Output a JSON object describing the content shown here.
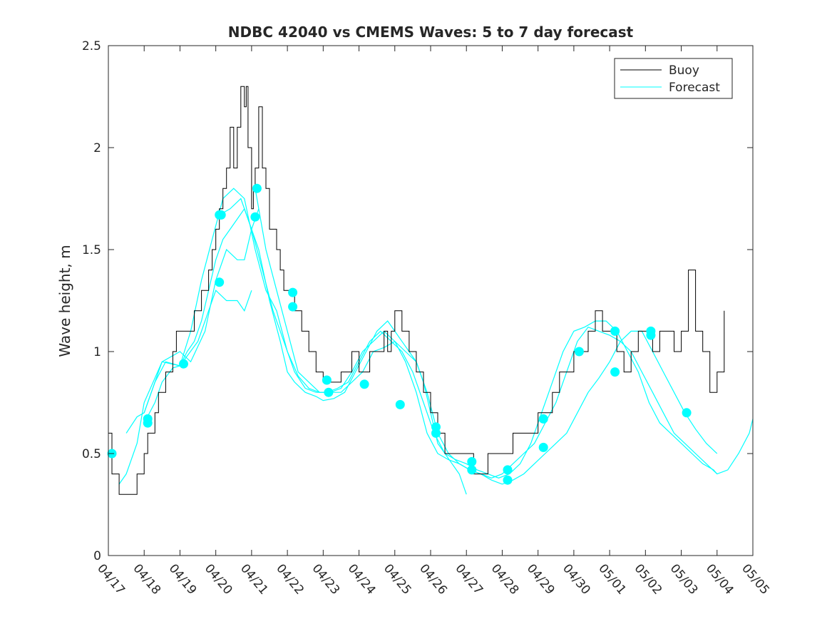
{
  "chart_data": {
    "type": "line",
    "title": "NDBC 42040 vs CMEMS Waves: 5 to 7 day forecast",
    "ylabel": "Wave height, m",
    "xlabel": "",
    "xlim": [
      "04/17",
      "05/05"
    ],
    "ylim": [
      0,
      2.5
    ],
    "xtick_labels": [
      "04/17",
      "04/18",
      "04/19",
      "04/20",
      "04/21",
      "04/22",
      "04/23",
      "04/24",
      "04/25",
      "04/26",
      "04/27",
      "04/28",
      "04/29",
      "04/30",
      "05/01",
      "05/02",
      "05/03",
      "05/04",
      "05/05"
    ],
    "ytick_labels": [
      "0",
      "0.5",
      "1",
      "1.5",
      "2",
      "2.5"
    ],
    "legend": {
      "position": "top-right",
      "entries": [
        {
          "label": "Buoy",
          "color": "#000000"
        },
        {
          "label": "Forecast",
          "color": "#00ffff"
        }
      ]
    },
    "colors": {
      "buoy": "#000000",
      "forecast": "#00ffff",
      "axis": "#262626",
      "markers": "#00ffff"
    },
    "buoy": {
      "day": [
        0,
        0.1,
        0.3,
        0.4,
        0.55,
        0.6,
        0.7,
        0.8,
        1.0,
        1.1,
        1.3,
        1.4,
        1.6,
        1.8,
        1.9,
        2.0,
        2.2,
        2.4,
        2.5,
        2.6,
        2.8,
        2.9,
        3.0,
        3.1,
        3.2,
        3.3,
        3.4,
        3.5,
        3.6,
        3.7,
        3.8,
        3.85,
        3.9,
        4.0,
        4.05,
        4.1,
        4.2,
        4.3,
        4.4,
        4.5,
        4.6,
        4.7,
        4.8,
        4.9,
        5.0,
        5.2,
        5.4,
        5.6,
        5.8,
        6.0,
        6.2,
        6.5,
        6.8,
        7.0,
        7.3,
        7.5,
        7.7,
        7.8,
        7.9,
        8.0,
        8.2,
        8.4,
        8.6,
        8.8,
        9.0,
        9.2,
        9.4,
        9.6,
        9.8,
        10.0,
        10.2,
        10.4,
        10.6,
        10.8,
        11.0,
        11.3,
        11.6,
        11.8,
        11.9,
        12.0,
        12.2,
        12.4,
        12.6,
        12.8,
        13.0,
        13.2,
        13.4,
        13.6,
        13.8,
        14.0,
        14.2,
        14.4,
        14.6,
        14.8,
        15.0,
        15.2,
        15.4,
        15.6,
        15.8,
        16.0,
        16.2,
        16.4,
        16.6,
        16.8,
        17.0,
        17.2
      ],
      "values": [
        0.6,
        0.4,
        0.3,
        0.3,
        0.3,
        0.3,
        0.3,
        0.4,
        0.5,
        0.6,
        0.7,
        0.8,
        0.9,
        1.0,
        1.1,
        1.1,
        1.1,
        1.2,
        1.2,
        1.3,
        1.4,
        1.5,
        1.6,
        1.7,
        1.8,
        1.9,
        2.1,
        1.9,
        2.1,
        2.3,
        2.2,
        2.3,
        2.0,
        1.7,
        1.8,
        1.9,
        2.2,
        1.9,
        1.8,
        1.6,
        1.6,
        1.5,
        1.4,
        1.3,
        1.3,
        1.2,
        1.1,
        1.0,
        0.9,
        0.85,
        0.85,
        0.9,
        1.0,
        0.9,
        1.0,
        1.0,
        1.1,
        1.0,
        1.1,
        1.2,
        1.1,
        1.0,
        0.9,
        0.8,
        0.7,
        0.6,
        0.5,
        0.5,
        0.5,
        0.5,
        0.4,
        0.4,
        0.5,
        0.5,
        0.5,
        0.6,
        0.6,
        0.6,
        0.6,
        0.7,
        0.7,
        0.8,
        0.9,
        0.9,
        1.0,
        1.0,
        1.1,
        1.2,
        1.1,
        1.1,
        1.0,
        0.9,
        1.0,
        1.1,
        1.1,
        1.0,
        1.1,
        1.1,
        1.0,
        1.1,
        1.4,
        1.1,
        1.0,
        0.8,
        0.9,
        1.2
      ]
    },
    "series": [
      {
        "x": [
          0.3,
          0.5,
          0.8,
          1.0,
          1.5,
          2.0,
          2.3,
          2.7,
          3.0,
          3.3,
          3.6,
          3.8,
          4.0,
          4.2
        ],
        "values": [
          0.35,
          0.4,
          0.55,
          0.75,
          0.95,
          1.0,
          0.95,
          1.1,
          1.35,
          1.5,
          1.45,
          1.45,
          1.6,
          1.7
        ]
      },
      {
        "x": [
          0.5,
          0.8,
          1.0,
          1.5,
          2.0,
          2.5,
          2.8,
          3.0,
          3.3,
          3.6,
          3.8,
          4.0
        ],
        "values": [
          0.6,
          0.68,
          0.7,
          0.95,
          0.93,
          1.05,
          1.2,
          1.3,
          1.25,
          1.25,
          1.2,
          1.3
        ]
      },
      {
        "x": [
          1.0,
          1.3,
          1.5,
          1.8,
          2.0,
          2.2,
          2.4,
          2.6,
          2.8,
          3.0,
          3.2,
          3.4,
          3.6,
          3.8,
          4.0,
          4.2,
          4.5,
          4.8,
          5.0,
          5.2,
          5.5,
          5.8,
          6.0,
          6.3,
          6.6,
          6.9,
          7.2,
          7.5,
          7.8,
          8.0,
          8.2,
          8.4,
          8.6,
          8.8,
          9.0,
          9.2,
          9.4,
          9.6,
          9.8,
          10.0
        ],
        "values": [
          0.65,
          0.75,
          0.85,
          0.92,
          0.93,
          1.0,
          1.05,
          1.15,
          1.3,
          1.45,
          1.55,
          1.6,
          1.65,
          1.7,
          1.6,
          1.5,
          1.25,
          1.05,
          0.9,
          0.85,
          0.8,
          0.78,
          0.76,
          0.77,
          0.8,
          0.9,
          1.0,
          1.1,
          1.15,
          1.1,
          1.05,
          1.0,
          0.95,
          0.85,
          0.7,
          0.55,
          0.5,
          0.45,
          0.4,
          0.3
        ]
      },
      {
        "x": [
          1.0,
          1.3,
          1.6,
          2.0,
          2.3,
          2.6,
          2.9,
          3.2,
          3.5,
          3.8,
          4.1,
          4.4,
          4.7,
          5.0,
          5.3,
          5.6,
          5.9,
          6.2,
          6.5,
          6.8,
          7.1,
          7.4,
          7.7,
          8.0,
          8.3,
          8.6,
          8.9,
          9.2,
          9.5,
          9.8,
          10.1,
          10.4,
          10.7,
          11.0,
          11.3,
          11.6,
          11.9,
          12.2,
          12.5,
          12.8,
          13.1,
          13.4,
          13.7,
          14.0,
          14.3,
          14.6,
          14.9,
          15.2,
          15.5,
          15.8,
          16.1,
          16.4,
          16.7,
          17.0,
          17.3,
          17.6,
          17.9,
          18.0
        ],
        "values": [
          0.7,
          0.85,
          0.95,
          0.93,
          1.1,
          1.35,
          1.55,
          1.75,
          1.8,
          1.75,
          1.5,
          1.3,
          1.2,
          1.0,
          0.88,
          0.82,
          0.8,
          0.8,
          0.82,
          0.9,
          1.0,
          1.05,
          1.1,
          1.05,
          0.95,
          0.8,
          0.6,
          0.5,
          0.47,
          0.45,
          0.42,
          0.4,
          0.38,
          0.4,
          0.45,
          0.5,
          0.55,
          0.65,
          0.75,
          0.9,
          1.05,
          1.12,
          1.1,
          1.08,
          1.05,
          1.0,
          0.9,
          0.8,
          0.7,
          0.6,
          0.55,
          0.5,
          0.45,
          0.4,
          0.42,
          0.5,
          0.6,
          0.67
        ]
      },
      {
        "x": [
          3.1,
          3.4,
          3.7,
          4.0,
          4.3,
          4.6,
          4.9,
          5.2,
          5.5,
          5.8,
          6.1,
          6.4,
          6.7,
          7.0,
          7.3,
          7.6,
          7.9,
          8.2,
          8.5,
          8.8,
          9.1,
          9.4,
          9.7,
          10.0,
          10.3,
          10.6,
          10.9,
          11.2,
          11.5,
          11.8,
          12.1,
          12.4,
          12.7,
          13.0,
          13.3,
          13.6,
          13.9,
          14.2,
          14.5,
          14.8,
          15.1,
          15.4,
          15.7,
          16.0,
          16.3,
          16.6,
          16.9,
          17.0
        ],
        "values": [
          1.67,
          1.7,
          1.75,
          1.6,
          1.4,
          1.2,
          1.05,
          0.9,
          0.82,
          0.8,
          0.8,
          0.82,
          0.85,
          0.95,
          1.05,
          1.1,
          1.05,
          1.0,
          0.9,
          0.75,
          0.6,
          0.5,
          0.47,
          0.45,
          0.42,
          0.4,
          0.38,
          0.4,
          0.45,
          0.55,
          0.7,
          0.85,
          1.0,
          1.1,
          1.12,
          1.15,
          1.15,
          1.1,
          1.0,
          0.9,
          0.75,
          0.65,
          0.6,
          0.55,
          0.5,
          0.45,
          0.42,
          0.4
        ]
      },
      {
        "x": [
          4.1,
          4.4,
          4.7,
          5.0,
          5.3,
          5.6,
          5.9,
          6.2,
          6.5,
          6.8,
          7.1,
          7.4,
          7.7,
          8.0,
          8.3,
          8.6,
          8.9,
          9.2,
          9.5,
          9.8,
          10.1,
          10.4,
          10.7,
          11.0,
          11.3,
          11.6,
          11.9,
          12.2,
          12.5,
          12.8,
          13.1,
          13.4,
          13.7,
          14.0,
          14.3,
          14.6,
          14.9,
          15.2,
          15.5,
          15.8,
          16.1,
          16.4,
          16.7,
          17.0
        ],
        "values": [
          1.8,
          1.5,
          1.3,
          1.1,
          0.9,
          0.85,
          0.8,
          0.8,
          0.8,
          0.85,
          0.9,
          1.0,
          1.02,
          1.05,
          1.0,
          0.95,
          0.8,
          0.6,
          0.5,
          0.45,
          0.42,
          0.4,
          0.37,
          0.35,
          0.37,
          0.4,
          0.45,
          0.5,
          0.55,
          0.6,
          0.7,
          0.8,
          0.87,
          0.95,
          1.05,
          1.1,
          1.1,
          1.0,
          0.9,
          0.8,
          0.7,
          0.62,
          0.55,
          0.5
        ]
      }
    ],
    "markers": {
      "x": [
        0.1,
        1.1,
        1.1,
        2.1,
        3.1,
        3.15,
        3.1,
        4.15,
        4.1,
        5.15,
        5.15,
        6.1,
        6.15,
        7.15,
        8.15,
        9.15,
        9.15,
        10.15,
        10.15,
        11.15,
        11.15,
        12.15,
        12.15,
        13.15,
        14.15,
        14.15,
        15.15,
        15.15,
        16.15
      ],
      "values": [
        0.5,
        0.67,
        0.65,
        0.94,
        1.67,
        1.67,
        1.34,
        1.8,
        1.66,
        1.29,
        1.22,
        0.86,
        0.8,
        0.84,
        0.74,
        0.63,
        0.6,
        0.46,
        0.42,
        0.42,
        0.37,
        0.67,
        0.53,
        1.0,
        0.9,
        1.1,
        1.08,
        1.1,
        0.7
      ]
    }
  }
}
